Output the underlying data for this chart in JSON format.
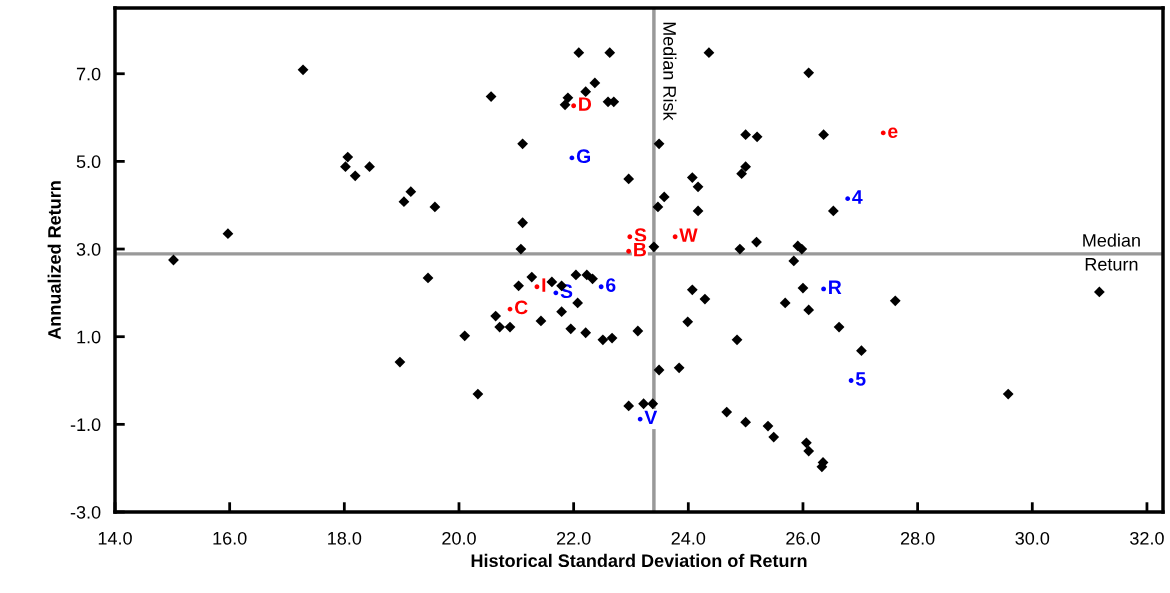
{
  "chart_data": {
    "type": "scatter",
    "xlabel": "Historical Standard Deviation of Return",
    "ylabel": "Annualized Return",
    "x": [
      15.02,
      15.97,
      17.28,
      18.06,
      18.02,
      18.19,
      18.44,
      19.16,
      19.04,
      19.58,
      20.56,
      21.11,
      21.11,
      21.08,
      19.46,
      21.04,
      20.64,
      20.71,
      20.89,
      20.1,
      18.97,
      20.33,
      21.27,
      21.62,
      21.79,
      22.04,
      22.23,
      22.33,
      22.07,
      21.43,
      21.79,
      21.95,
      22.21,
      22.51,
      22.67,
      23.12,
      23.49,
      23.84,
      22.96,
      23.22,
      23.38,
      24.07,
      24.29,
      23.99,
      24.85,
      24.9,
      25.19,
      25.91,
      25.98,
      25.84,
      26.0,
      25.69,
      26.1,
      24.67,
      25.0,
      25.39,
      25.49,
      26.06,
      26.1,
      26.35,
      26.33,
      26.63,
      27.02,
      27.61,
      31.17,
      29.58,
      22.09,
      22.63,
      24.36,
      22.37,
      22.21,
      21.9,
      21.85,
      22.6,
      22.7,
      26.1,
      23.49,
      25.0,
      25.2,
      26.36,
      22.96,
      24.07,
      24.17,
      25.0,
      24.93,
      23.58,
      23.47,
      24.17,
      23.4,
      26.53
    ],
    "series": [
      {
        "color": "#000000",
        "values": [
          2.75,
          3.35,
          7.09,
          5.1,
          4.88,
          4.67,
          4.88,
          4.31,
          4.08,
          3.96,
          6.48,
          5.4,
          3.6,
          3.0,
          2.34,
          2.16,
          1.47,
          1.22,
          1.22,
          1.02,
          0.42,
          -0.31,
          2.36,
          2.25,
          2.16,
          2.41,
          2.41,
          2.32,
          1.77,
          1.36,
          1.57,
          1.18,
          1.09,
          0.93,
          0.97,
          1.13,
          0.24,
          0.29,
          -0.58,
          -0.53,
          -0.53,
          2.07,
          1.86,
          1.34,
          0.93,
          3.0,
          3.16,
          3.07,
          3.0,
          2.73,
          2.11,
          1.77,
          1.61,
          -0.72,
          -0.95,
          -1.04,
          -1.29,
          -1.42,
          -1.61,
          -1.87,
          -1.97,
          1.22,
          0.68,
          1.82,
          2.02,
          -0.31,
          7.48,
          7.48,
          7.48,
          6.79,
          6.59,
          6.45,
          6.29,
          6.36,
          6.36,
          7.02,
          5.4,
          5.61,
          5.56,
          5.61,
          4.6,
          4.63,
          4.42,
          4.88,
          4.72,
          4.19,
          3.96,
          3.87,
          3.05,
          3.87
        ]
      },
      {
        "name": "D",
        "color": "#ff0000",
        "marker": "circle",
        "x": [
          22.0
        ],
        "values": [
          6.27
        ]
      },
      {
        "name": "G",
        "color": "#0000ff",
        "marker": "circle",
        "x": [
          21.97
        ],
        "values": [
          5.08
        ]
      },
      {
        "name": "S",
        "color": "#ff0000",
        "marker": "circle",
        "x": [
          22.98
        ],
        "values": [
          3.28
        ]
      },
      {
        "name": "B",
        "color": "#ff0000",
        "marker": "circle",
        "x": [
          22.96
        ],
        "values": [
          2.95
        ]
      },
      {
        "name": "W",
        "color": "#ff0000",
        "marker": "circle",
        "x": [
          23.77
        ],
        "values": [
          3.28
        ]
      },
      {
        "name": "e",
        "color": "#ff0000",
        "marker": "circle",
        "x": [
          27.4
        ],
        "values": [
          5.65
        ]
      },
      {
        "name": "4",
        "color": "#0000ff",
        "marker": "circle",
        "x": [
          26.78
        ],
        "values": [
          4.15
        ]
      },
      {
        "name": "R",
        "color": "#0000ff",
        "marker": "circle",
        "x": [
          26.36
        ],
        "values": [
          2.09
        ]
      },
      {
        "name": "5",
        "color": "#0000ff",
        "marker": "circle",
        "x": [
          26.84
        ],
        "values": [
          0.0
        ]
      },
      {
        "name": "V",
        "color": "#0000ff",
        "marker": "circle",
        "x": [
          23.16
        ],
        "values": [
          -0.88
        ]
      },
      {
        "name": "6",
        "color": "#0000ff",
        "marker": "circle",
        "x": [
          22.48
        ],
        "values": [
          2.14
        ]
      },
      {
        "name": "S",
        "color": "#0000ff",
        "marker": "circle",
        "x": [
          21.69
        ],
        "values": [
          2.0
        ]
      },
      {
        "name": "I",
        "color": "#ff0000",
        "marker": "circle",
        "x": [
          21.36
        ],
        "values": [
          2.14
        ]
      },
      {
        "name": "C",
        "color": "#ff0000",
        "marker": "circle",
        "x": [
          20.89
        ],
        "values": [
          1.63
        ]
      }
    ],
    "marker": "diamond",
    "grid": false,
    "xlim": [
      14.0,
      32.28
    ],
    "ylim": [
      -3.0,
      8.5
    ],
    "xticks": [
      {
        "value": 14,
        "label": "14.0"
      },
      {
        "value": 16,
        "label": "16.0"
      },
      {
        "value": 18,
        "label": "18.0"
      },
      {
        "value": 20,
        "label": "20.0"
      },
      {
        "value": 22,
        "label": "22.0"
      },
      {
        "value": 24,
        "label": "24.0"
      },
      {
        "value": 26,
        "label": "26.0"
      },
      {
        "value": 28,
        "label": "28.0"
      },
      {
        "value": 30,
        "label": "30.0"
      },
      {
        "value": 32,
        "label": "32.0"
      }
    ],
    "yticks": [
      {
        "value": -3,
        "label": "-3.0"
      },
      {
        "value": -1,
        "label": "-1.0"
      },
      {
        "value": 1,
        "label": "1.0"
      },
      {
        "value": 3,
        "label": "3.0"
      },
      {
        "value": 5,
        "label": "5.0"
      },
      {
        "value": 7,
        "label": "7.0"
      }
    ],
    "ref_lines": [
      {
        "axis": "x",
        "value": 23.4,
        "label": "Median Risk",
        "color": "#999999"
      },
      {
        "axis": "y",
        "value": 2.89,
        "label": "Median Return",
        "color": "#999999"
      }
    ]
  }
}
